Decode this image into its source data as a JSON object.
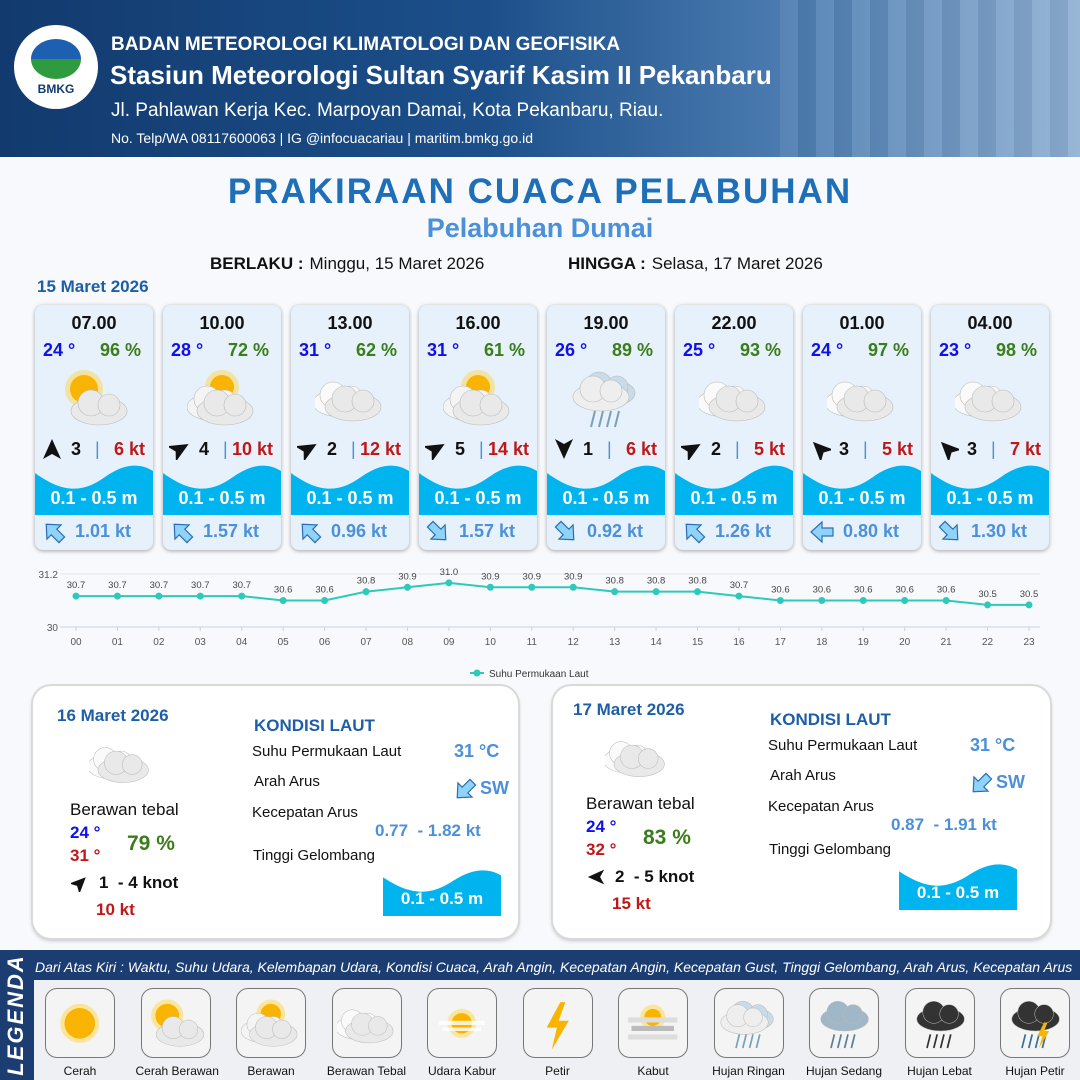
{
  "header": {
    "agency": "BADAN METEOROLOGI KLIMATOLOGI DAN GEOFISIKA",
    "station": "Stasiun Meteorologi Sultan Syarif Kasim II Pekanbaru",
    "address": "Jl. Pahlawan Kerja Kec. Marpoyan Damai, Kota Pekanbaru, Riau.",
    "contact": "No. Telp/WA 08117600063 | IG @infocuacariau | maritim.bmkg.go.id",
    "logo_text": "BMKG"
  },
  "title": "PRAKIRAAN CUACA PELABUHAN",
  "subtitle": "Pelabuhan Dumai",
  "validity": {
    "from_label": "BERLAKU :",
    "from": "Minggu, 15 Maret 2026",
    "to_label": "HINGGA :",
    "to": "Selasa, 17 Maret 2026"
  },
  "day1": {
    "date": "15 Maret 2026",
    "cards": [
      {
        "time": "07.00",
        "temp": "24 °",
        "hum": "96 %",
        "icon": "cerah-berawan",
        "wind_dir_deg": 0,
        "wind": "3",
        "gust": "6 kt",
        "wave": "0.1 - 0.5 m",
        "cur_dir": "NW",
        "cur": "1.01 kt"
      },
      {
        "time": "10.00",
        "temp": "28 °",
        "hum": "72 %",
        "icon": "berawan",
        "wind_dir_deg": 60,
        "wind": "4",
        "gust": "10 kt",
        "wave": "0.1 - 0.5 m",
        "cur_dir": "NW",
        "cur": "1.57 kt"
      },
      {
        "time": "13.00",
        "temp": "31 °",
        "hum": "62 %",
        "icon": "berawan-tebal",
        "wind_dir_deg": 60,
        "wind": "2",
        "gust": "12 kt",
        "wave": "0.1 - 0.5 m",
        "cur_dir": "NW",
        "cur": "0.96 kt"
      },
      {
        "time": "16.00",
        "temp": "31 °",
        "hum": "61 %",
        "icon": "berawan",
        "wind_dir_deg": 60,
        "wind": "5",
        "gust": "14 kt",
        "wave": "0.1 - 0.5 m",
        "cur_dir": "SE",
        "cur": "1.57 kt"
      },
      {
        "time": "19.00",
        "temp": "26 °",
        "hum": "89 %",
        "icon": "hujan-ringan",
        "wind_dir_deg": 180,
        "wind": "1",
        "gust": "6 kt",
        "wave": "0.1 - 0.5 m",
        "cur_dir": "SE",
        "cur": "0.92 kt"
      },
      {
        "time": "22.00",
        "temp": "25 °",
        "hum": "93 %",
        "icon": "berawan-tebal",
        "wind_dir_deg": 60,
        "wind": "2",
        "gust": "5 kt",
        "wave": "0.1 - 0.5 m",
        "cur_dir": "NW",
        "cur": "1.26 kt"
      },
      {
        "time": "01.00",
        "temp": "24 °",
        "hum": "97 %",
        "icon": "berawan-tebal",
        "wind_dir_deg": -45,
        "wind": "3",
        "gust": "5 kt",
        "wave": "0.1 - 0.5 m",
        "cur_dir": "W",
        "cur": "0.80 kt"
      },
      {
        "time": "04.00",
        "temp": "23 °",
        "hum": "98 %",
        "icon": "berawan-tebal",
        "wind_dir_deg": -45,
        "wind": "3",
        "gust": "7 kt",
        "wave": "0.1 - 0.5 m",
        "cur_dir": "SE",
        "cur": "1.30 kt"
      }
    ]
  },
  "chart_data": {
    "type": "line",
    "categories": [
      "00",
      "01",
      "02",
      "03",
      "04",
      "05",
      "06",
      "07",
      "08",
      "09",
      "10",
      "11",
      "12",
      "13",
      "14",
      "15",
      "16",
      "17",
      "18",
      "19",
      "20",
      "21",
      "22",
      "23"
    ],
    "series": [
      {
        "name": "Suhu Permukaan Laut",
        "values": [
          30.7,
          30.7,
          30.7,
          30.7,
          30.7,
          30.6,
          30.6,
          30.8,
          30.9,
          31.0,
          30.9,
          30.9,
          30.9,
          30.8,
          30.8,
          30.8,
          30.7,
          30.6,
          30.6,
          30.6,
          30.6,
          30.6,
          30.5,
          30.5
        ]
      }
    ],
    "yticks": [
      "30",
      "31.2"
    ],
    "ylim": [
      30,
      31.2
    ],
    "legend": "bottom",
    "color": "#2ec9b8",
    "grid": true
  },
  "days": [
    {
      "date": "16 Maret 2026",
      "cond": "Berawan tebal",
      "tmin": "24 °",
      "tmax": "31 °",
      "hum": "79 %",
      "wind_dir": "NE",
      "wind": "1  - 4 knot",
      "gust": "10 kt",
      "kondisi": "KONDISI LAUT",
      "sst_label": "Suhu Permukaan Laut",
      "sst": "31 °C",
      "cur_dir_label": "Arah Arus",
      "cur_dir": "SW",
      "cur_spd_label": "Kecepatan Arus",
      "cur_spd": "0.77  - 1.82 kt",
      "wave_label": "Tinggi Gelombang",
      "wave": "0.1 - 0.5 m"
    },
    {
      "date": "17 Maret 2026",
      "cond": "Berawan tebal",
      "tmin": "24 °",
      "tmax": "32 °",
      "hum": "83 %",
      "wind_dir": "W",
      "wind": "2  - 5 knot",
      "gust": "15 kt",
      "kondisi": "KONDISI LAUT",
      "sst_label": "Suhu Permukaan Laut",
      "sst": "31 °C",
      "cur_dir_label": "Arah Arus",
      "cur_dir": "SW",
      "cur_spd_label": "Kecepatan Arus",
      "cur_spd": "0.87  - 1.91 kt",
      "wave_label": "Tinggi Gelombang",
      "wave": "0.1 - 0.5 m"
    }
  ],
  "legend": {
    "title": "LEGENDA",
    "description": "Dari Atas Kiri : Waktu, Suhu Udara, Kelembapan Udara, Kondisi Cuaca, Arah Angin, Kecepatan Angin, Kecepatan Gust, Tinggi Gelombang, Arah Arus, Kecepatan Arus",
    "items": [
      {
        "label": "Cerah",
        "icon": "cerah"
      },
      {
        "label": "Cerah Berawan",
        "icon": "cerah-berawan"
      },
      {
        "label": "Berawan",
        "icon": "berawan"
      },
      {
        "label": "Berawan Tebal",
        "icon": "berawan-tebal"
      },
      {
        "label": "Udara Kabur",
        "icon": "udara-kabur"
      },
      {
        "label": "Petir",
        "icon": "petir"
      },
      {
        "label": "Kabut",
        "icon": "kabut"
      },
      {
        "label": "Hujan Ringan",
        "icon": "hujan-ringan"
      },
      {
        "label": "Hujan Sedang",
        "icon": "hujan-sedang"
      },
      {
        "label": "Hujan Lebat",
        "icon": "hujan-lebat"
      },
      {
        "label": "Hujan Petir",
        "icon": "hujan-petir"
      }
    ]
  },
  "colors": {
    "wave": "#00b4f0",
    "temp": "#1010e8",
    "hum": "#3a7d1a",
    "gust": "#c01818",
    "current": "#4b90d9",
    "title": "#1f6fb8"
  }
}
